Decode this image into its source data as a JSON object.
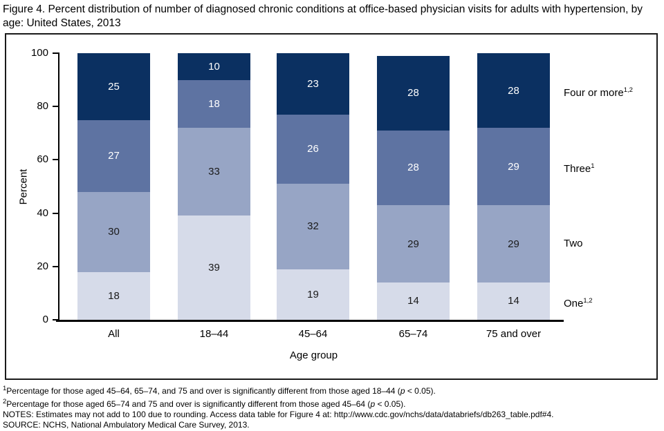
{
  "figure": {
    "title": "Figure 4. Percent distribution of number of diagnosed chronic conditions at office-based physician visits for adults with hypertension, by age: United States, 2013"
  },
  "chart_data": {
    "type": "bar",
    "stacked": true,
    "title": "Figure 4. Percent distribution of number of diagnosed chronic conditions at office-based physician visits for adults with hypertension, by age: United States, 2013",
    "categories": [
      "All",
      "18–44",
      "45–64",
      "65–74",
      "75 and over"
    ],
    "series": [
      {
        "name": "One",
        "sup": "1,2",
        "color": "#d6dbe9",
        "label_color": "#1a1a1a",
        "values": [
          18,
          39,
          19,
          14,
          14
        ]
      },
      {
        "name": "Two",
        "sup": "",
        "color": "#97a5c5",
        "label_color": "#1a1a1a",
        "values": [
          30,
          33,
          32,
          29,
          29
        ]
      },
      {
        "name": "Three",
        "sup": "1",
        "color": "#5e73a2",
        "label_color": "#ffffff",
        "values": [
          27,
          18,
          26,
          28,
          29
        ]
      },
      {
        "name": "Four or more",
        "sup": "1,2",
        "color": "#0b3061",
        "label_color": "#ffffff",
        "values": [
          25,
          10,
          23,
          28,
          28
        ]
      }
    ],
    "xlabel": "Age group",
    "ylabel": "Percent",
    "ylim": [
      0,
      100
    ],
    "y_ticks": [
      0,
      20,
      40,
      60,
      80,
      100
    ],
    "grid": false,
    "legend_position": "right"
  },
  "footnotes": [
    {
      "sup": "1",
      "pre": "Percentage for those aged 45–64, 65–74, and 75 and over is significantly different from those aged 18–44 (",
      "p": "p",
      "post": " < 0.05)."
    },
    {
      "sup": "2",
      "pre": "Percentage for those aged 65–74 and 75 and over is significantly different from those aged 45–64 (",
      "p": "p",
      "post": " < 0.05)."
    }
  ],
  "notes_line": "NOTES: Estimates may not add to 100 due to rounding. Access data table for Figure 4 at: http://www.cdc.gov/nchs/data/databriefs/db263_table.pdf#4.",
  "source_line": "SOURCE: NCHS, National Ambulatory Medical Care Survey, 2013."
}
